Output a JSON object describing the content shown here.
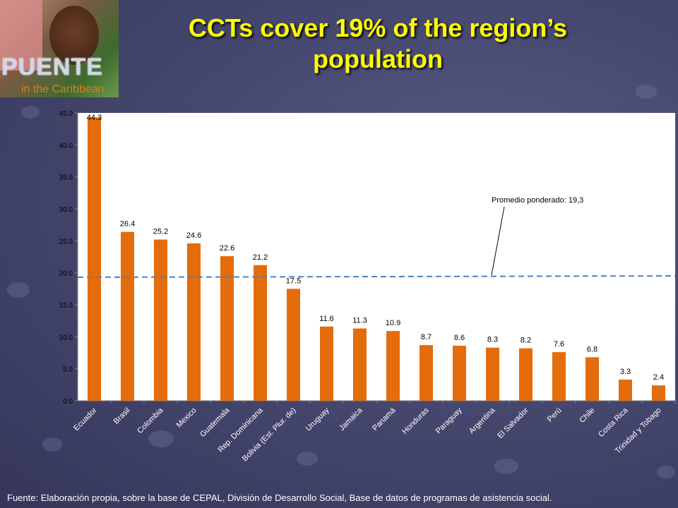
{
  "logo": {
    "word": "PUENTE",
    "subtitle": "in the Caribbean"
  },
  "title": "CCTs cover 19% of the region’s population",
  "source": "Fuente: Elaboración propia, sobre la base de CEPAL, División de Desarrollo Social, Base de datos de programas de asistencia social.",
  "colors": {
    "bar": "#e46c0a",
    "reference_line": "#4f81bd",
    "title": "#ffff00"
  },
  "chart_data": {
    "type": "bar",
    "categories": [
      "Ecuador",
      "Brasil",
      "Colombia",
      "Mexico",
      "Guatemala",
      "Rep. Dominicana",
      "Bolivia (Est. Plur. de)",
      "Uruguay",
      "Jamaica",
      "Panamá",
      "Honduras",
      "Paraguay",
      "Argentina",
      "El Salvador",
      "Perú",
      "Chile",
      "Costa Rica",
      "Trinidad y Tobago"
    ],
    "values": [
      44.3,
      26.4,
      25.2,
      24.6,
      22.6,
      21.2,
      17.5,
      11.6,
      11.3,
      10.9,
      8.7,
      8.6,
      8.3,
      8.2,
      7.6,
      6.8,
      3.3,
      2.4
    ],
    "value_labels": [
      "44.3",
      "26.4",
      "25.2",
      "24.6",
      "22.6",
      "21.2",
      "17.5",
      "11.6",
      "11.3",
      "10.9",
      "8.7",
      "8.6",
      "8.3",
      "8.2",
      "7.6",
      "6.8",
      "3.3",
      "2.4"
    ],
    "yticks": [
      "0.0",
      "5.0",
      "10.0",
      "15.0",
      "20.0",
      "25.0",
      "30.0",
      "35.0",
      "40.0",
      "45.0"
    ],
    "ylim": [
      0,
      45
    ],
    "reference_line": {
      "value": 19.3,
      "label": "Promedio ponderado: 19,3"
    },
    "grid": false,
    "xlabel": "",
    "ylabel": ""
  }
}
